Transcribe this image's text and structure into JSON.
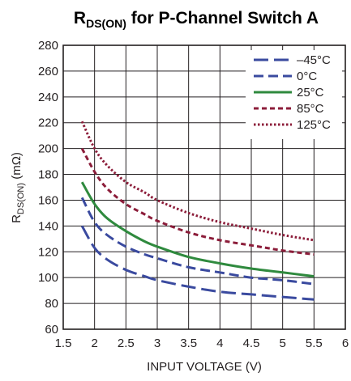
{
  "chart_data": {
    "type": "line",
    "title": {
      "main": "R",
      "sub": "DS(ON)",
      "rest": " for P-Channel Switch A"
    },
    "xlabel": "INPUT VOLTAGE (V)",
    "ylabel": {
      "main": "R",
      "sub": "DS(ON)",
      "rest": " (mΩ)"
    },
    "xlim": [
      1.5,
      6
    ],
    "ylim": [
      60,
      280
    ],
    "xticks": [
      1.5,
      2,
      2.5,
      3,
      3.5,
      4,
      4.5,
      5,
      5.5,
      6
    ],
    "xtick_labels": [
      "1.5",
      "2",
      "2.5",
      "3",
      "3.5",
      "4",
      "4.5",
      "5",
      "5.5",
      "6"
    ],
    "yticks": [
      60,
      80,
      100,
      120,
      140,
      160,
      180,
      200,
      220,
      240,
      260,
      280
    ],
    "ytick_labels": [
      "60",
      "80",
      "100",
      "120",
      "140",
      "160",
      "180",
      "200",
      "220",
      "240",
      "260",
      "280"
    ],
    "grid": true,
    "legend_position": "top-right",
    "series": [
      {
        "name": "–45°C",
        "color": "#3a4a9f",
        "style": "longdash",
        "x": [
          1.8,
          2.0,
          2.2,
          2.5,
          2.8,
          3.0,
          3.5,
          4.0,
          4.5,
          5.0,
          5.5
        ],
        "y": [
          140,
          123,
          114,
          106,
          101,
          98,
          93,
          89,
          87,
          85,
          83
        ]
      },
      {
        "name": "0°C",
        "color": "#3a4a9f",
        "style": "dash",
        "x": [
          1.8,
          2.0,
          2.2,
          2.5,
          2.8,
          3.0,
          3.5,
          4.0,
          4.5,
          5.0,
          5.5
        ],
        "y": [
          162,
          143,
          133,
          124,
          118,
          115,
          108,
          104,
          100,
          98,
          95
        ]
      },
      {
        "name": "25°C",
        "color": "#2f8a3e",
        "style": "solid",
        "x": [
          1.8,
          2.0,
          2.2,
          2.5,
          2.8,
          3.0,
          3.5,
          4.0,
          4.5,
          5.0,
          5.5
        ],
        "y": [
          174,
          157,
          146,
          136,
          128,
          124,
          116,
          111,
          107,
          104,
          101
        ]
      },
      {
        "name": "85°C",
        "color": "#8c1d3a",
        "style": "shortdash",
        "x": [
          1.8,
          2.0,
          2.2,
          2.5,
          2.8,
          3.0,
          3.5,
          4.0,
          4.5,
          5.0,
          5.5
        ],
        "y": [
          200,
          182,
          169,
          157,
          149,
          144,
          135,
          129,
          125,
          121,
          118
        ]
      },
      {
        "name": "125°C",
        "color": "#8c1d3a",
        "style": "dot",
        "x": [
          1.8,
          2.0,
          2.2,
          2.5,
          2.8,
          3.0,
          3.5,
          4.0,
          4.5,
          5.0,
          5.5
        ],
        "y": [
          221,
          200,
          187,
          174,
          166,
          160,
          150,
          143,
          138,
          133,
          129
        ]
      }
    ]
  }
}
